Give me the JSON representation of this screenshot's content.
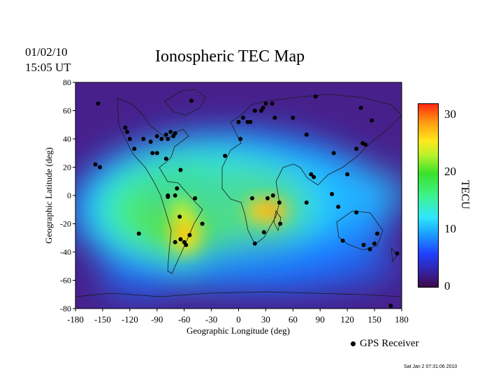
{
  "header": {
    "date": "01/02/10",
    "time": "15:05 UT",
    "title": "Ionospheric TEC Map"
  },
  "chart_data": {
    "type": "heatmap",
    "title": "Ionospheric TEC Map",
    "xlabel": "Geographic Longitude (deg)",
    "ylabel": "Geographic Latitude (deg)",
    "xlim": [
      -180,
      180
    ],
    "ylim": [
      -80,
      80
    ],
    "x_ticks": [
      "-180",
      "-150",
      "-120",
      "-90",
      "-60",
      "-30",
      "0",
      "30",
      "60",
      "90",
      "120",
      "150",
      "180"
    ],
    "y_ticks": [
      "80",
      "60",
      "40",
      "20",
      "0",
      "-20",
      "-40",
      "-60",
      "-80"
    ],
    "colorbar": {
      "label": "TECU",
      "ticks": [
        "30",
        "20",
        "10",
        "0"
      ],
      "range": [
        0,
        32
      ]
    },
    "tec_peaks": [
      {
        "lon": -65,
        "lat": -28,
        "value": 27,
        "note_free": true
      },
      {
        "lon": 40,
        "lat": -10,
        "value": 28
      },
      {
        "lon": -75,
        "lat": -15,
        "value": 20
      },
      {
        "lon": 20,
        "lat": 0,
        "value": 18
      }
    ],
    "gps_receivers": [
      [
        -155,
        65
      ],
      [
        -125,
        48
      ],
      [
        -123,
        45
      ],
      [
        -120,
        40
      ],
      [
        -115,
        33
      ],
      [
        -105,
        40
      ],
      [
        -97,
        38
      ],
      [
        -90,
        42
      ],
      [
        -85,
        40
      ],
      [
        -80,
        43
      ],
      [
        -78,
        40
      ],
      [
        -75,
        45
      ],
      [
        -72,
        42
      ],
      [
        -70,
        44
      ],
      [
        -95,
        30
      ],
      [
        -90,
        30
      ],
      [
        -80,
        26
      ],
      [
        -64,
        18
      ],
      [
        -158,
        22
      ],
      [
        -153,
        20
      ],
      [
        -52,
        67
      ],
      [
        -48,
        -2
      ],
      [
        -40,
        -20
      ],
      [
        -78,
        -1
      ],
      [
        -65,
        -15
      ],
      [
        -70,
        -33
      ],
      [
        -64,
        -31
      ],
      [
        -60,
        -33
      ],
      [
        -58,
        -35
      ],
      [
        -54,
        -28
      ],
      [
        -110,
        -27
      ],
      [
        -68,
        5
      ],
      [
        -78,
        0
      ],
      [
        -70,
        0
      ],
      [
        -15,
        28
      ],
      [
        0,
        52
      ],
      [
        2,
        40
      ],
      [
        5,
        55
      ],
      [
        10,
        52
      ],
      [
        13,
        52
      ],
      [
        18,
        60
      ],
      [
        25,
        60
      ],
      [
        27,
        62
      ],
      [
        30,
        65
      ],
      [
        40,
        55
      ],
      [
        60,
        55
      ],
      [
        75,
        43
      ],
      [
        37,
        65
      ],
      [
        85,
        70
      ],
      [
        135,
        62
      ],
      [
        147,
        53
      ],
      [
        105,
        30
      ],
      [
        15,
        -2
      ],
      [
        28,
        -26
      ],
      [
        18,
        -34
      ],
      [
        32,
        -2
      ],
      [
        38,
        0
      ],
      [
        45,
        -5
      ],
      [
        46,
        -20
      ],
      [
        75,
        -5
      ],
      [
        80,
        15
      ],
      [
        83,
        13
      ],
      [
        103,
        1
      ],
      [
        110,
        -8
      ],
      [
        120,
        15
      ],
      [
        115,
        -32
      ],
      [
        130,
        -12
      ],
      [
        138,
        -35
      ],
      [
        145,
        -38
      ],
      [
        150,
        -34
      ],
      [
        153,
        -27
      ],
      [
        175,
        -41
      ],
      [
        168,
        -78
      ],
      [
        137,
        37
      ],
      [
        140,
        36
      ],
      [
        130,
        33
      ]
    ]
  },
  "legend": {
    "label": "GPS Receiver"
  },
  "footer": {
    "timestamp": "Sat Jan  2 07:31:06 2010"
  }
}
